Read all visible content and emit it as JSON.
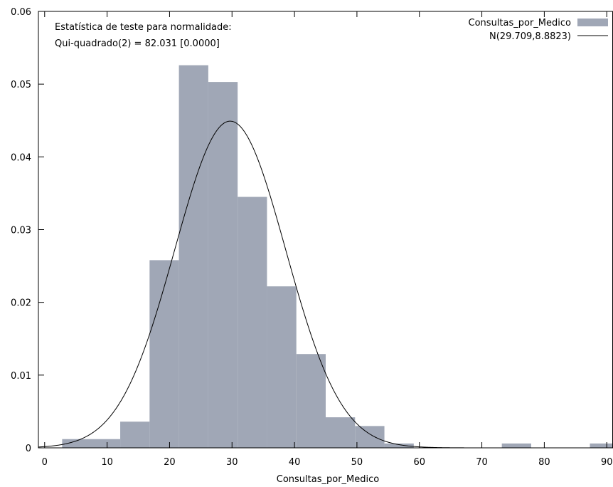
{
  "chart_data": {
    "type": "bar",
    "xlabel": "Consultas_por_Medico",
    "ylabel": "",
    "xlim": [
      -1,
      91
    ],
    "ylim": [
      0,
      0.06
    ],
    "xticks": [
      0,
      10,
      20,
      30,
      40,
      50,
      60,
      70,
      80,
      90
    ],
    "yticks": [
      0,
      0.01,
      0.02,
      0.03,
      0.04,
      0.05,
      0.06
    ],
    "xtick_labels": [
      "0",
      "10",
      "20",
      "30",
      "40",
      "50",
      "60",
      "70",
      "80",
      "90"
    ],
    "ytick_labels": [
      "0",
      "0.01",
      "0.02",
      "0.03",
      "0.04",
      "0.05",
      "0.06"
    ],
    "histogram": {
      "name": "Consultas_por_Medico",
      "color": "#a0a7b6",
      "bins": [
        {
          "x0": 2.8,
          "x1": 12.1,
          "value": 0.0012
        },
        {
          "x0": 12.1,
          "x1": 16.8,
          "value": 0.0036
        },
        {
          "x0": 16.8,
          "x1": 21.5,
          "value": 0.0258
        },
        {
          "x0": 21.5,
          "x1": 26.2,
          "value": 0.0526
        },
        {
          "x0": 26.2,
          "x1": 30.9,
          "value": 0.0503
        },
        {
          "x0": 30.9,
          "x1": 35.6,
          "value": 0.0345
        },
        {
          "x0": 35.6,
          "x1": 40.3,
          "value": 0.0222
        },
        {
          "x0": 40.3,
          "x1": 45.0,
          "value": 0.0129
        },
        {
          "x0": 45.0,
          "x1": 49.7,
          "value": 0.0042
        },
        {
          "x0": 49.7,
          "x1": 54.4,
          "value": 0.003
        },
        {
          "x0": 54.4,
          "x1": 59.1,
          "value": 0.0006
        },
        {
          "x0": 73.2,
          "x1": 77.9,
          "value": 0.0006
        },
        {
          "x0": 87.3,
          "x1": 92.0,
          "value": 0.0006
        }
      ]
    },
    "normal_curve": {
      "name": "N(29.709,8.8823)",
      "mean": 29.709,
      "sd": 8.8823,
      "color": "#000000"
    },
    "legend": {
      "position": "top-right",
      "entries": [
        "Consultas_por_Medico",
        "N(29.709,8.8823)"
      ]
    },
    "annotations": [
      "Estatística de teste para normalidade:",
      "Qui-quadrado(2) = 82.031 [0.0000]"
    ],
    "grid": false
  }
}
